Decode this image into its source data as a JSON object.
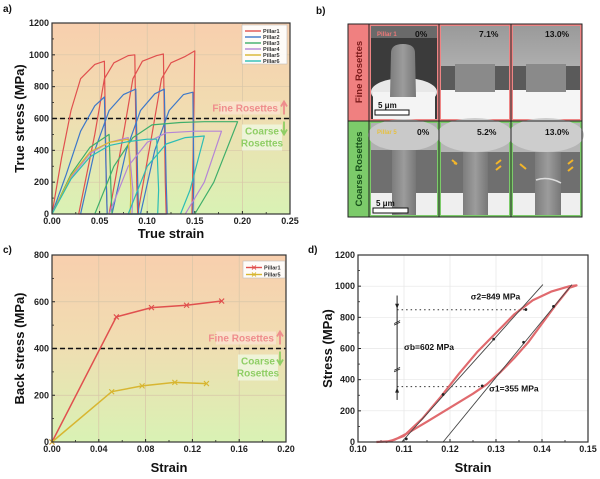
{
  "figure": {
    "panel_labels": [
      "a)",
      "b)",
      "c)",
      "d)"
    ]
  },
  "chart_data": [
    {
      "id": "a",
      "type": "line",
      "title": "",
      "xlabel": "True strain",
      "ylabel": "True stress (MPa)",
      "xlim": [
        0.0,
        0.25
      ],
      "ylim": [
        0,
        1200
      ],
      "xticks": [
        "0.00",
        "0.05",
        "0.10",
        "0.15",
        "0.20",
        "0.25"
      ],
      "xtick_values": [
        0.0,
        0.05,
        0.1,
        0.15,
        0.2,
        0.25
      ],
      "yticks": [
        "0",
        "200",
        "400",
        "600",
        "800",
        "1000",
        "1200"
      ],
      "ytick_values": [
        0,
        200,
        400,
        600,
        800,
        1000,
        1200
      ],
      "grid": true,
      "legend_position": "top-right",
      "threshold_line": {
        "y": 600,
        "style": "dashed",
        "color": "#111111"
      },
      "annotations": [
        {
          "text": "Fine Rosettes",
          "arrow": "up",
          "color": "#ef8d8d"
        },
        {
          "text": "Coarse",
          "arrow": "down",
          "color": "#8fce65"
        },
        {
          "text": "Rosettes",
          "color": "#8fce65"
        }
      ],
      "background": {
        "top": "#f8cfae",
        "bottom": "#d9f2b4"
      },
      "series": [
        {
          "name": "Pillar1",
          "color": "#e0504e",
          "points": [
            [
              0.0,
              0
            ],
            [
              0.01,
              350
            ],
            [
              0.02,
              650
            ],
            [
              0.03,
              850
            ],
            [
              0.045,
              940
            ],
            [
              0.055,
              960
            ],
            [
              0.057,
              200
            ],
            [
              0.058,
              0
            ],
            [
              0.028,
              0
            ],
            [
              0.045,
              500
            ],
            [
              0.055,
              850
            ],
            [
              0.065,
              950
            ],
            [
              0.08,
              995
            ],
            [
              0.087,
              1000
            ],
            [
              0.089,
              200
            ],
            [
              0.09,
              0
            ],
            [
              0.06,
              0
            ],
            [
              0.075,
              500
            ],
            [
              0.085,
              850
            ],
            [
              0.095,
              960
            ],
            [
              0.11,
              995
            ],
            [
              0.117,
              1005
            ],
            [
              0.119,
              200
            ],
            [
              0.12,
              0
            ],
            [
              0.09,
              0
            ],
            [
              0.105,
              500
            ],
            [
              0.115,
              850
            ],
            [
              0.125,
              950
            ],
            [
              0.14,
              990
            ],
            [
              0.15,
              1025
            ],
            [
              0.148,
              300
            ],
            [
              0.147,
              0
            ]
          ]
        },
        {
          "name": "Pillar2",
          "color": "#3d78c9",
          "points": [
            [
              0.0,
              0
            ],
            [
              0.015,
              250
            ],
            [
              0.03,
              520
            ],
            [
              0.045,
              680
            ],
            [
              0.055,
              735
            ],
            [
              0.057,
              200
            ],
            [
              0.058,
              0
            ],
            [
              0.03,
              0
            ],
            [
              0.045,
              400
            ],
            [
              0.06,
              650
            ],
            [
              0.075,
              750
            ],
            [
              0.088,
              785
            ],
            [
              0.09,
              200
            ],
            [
              0.091,
              0
            ],
            [
              0.063,
              0
            ],
            [
              0.078,
              400
            ],
            [
              0.093,
              650
            ],
            [
              0.108,
              755
            ],
            [
              0.118,
              785
            ],
            [
              0.12,
              200
            ],
            [
              0.121,
              0
            ],
            [
              0.093,
              0
            ],
            [
              0.108,
              400
            ],
            [
              0.123,
              650
            ],
            [
              0.138,
              750
            ],
            [
              0.148,
              765
            ],
            [
              0.149,
              200
            ],
            [
              0.148,
              0
            ]
          ]
        },
        {
          "name": "Pillar3",
          "color": "#3fae6a",
          "points": [
            [
              0.0,
              0
            ],
            [
              0.02,
              250
            ],
            [
              0.04,
              420
            ],
            [
              0.06,
              500
            ],
            [
              0.062,
              150
            ],
            [
              0.063,
              0
            ],
            [
              0.045,
              0
            ],
            [
              0.065,
              300
            ],
            [
              0.085,
              480
            ],
            [
              0.105,
              560
            ],
            [
              0.135,
              575
            ],
            [
              0.16,
              580
            ],
            [
              0.195,
              580
            ],
            [
              0.17,
              200
            ],
            [
              0.15,
              0
            ]
          ]
        },
        {
          "name": "Pillar4",
          "color": "#b585d6",
          "points": [
            [
              0.0,
              0
            ],
            [
              0.02,
              230
            ],
            [
              0.04,
              380
            ],
            [
              0.06,
              450
            ],
            [
              0.08,
              480
            ],
            [
              0.085,
              150
            ],
            [
              0.084,
              0
            ],
            [
              0.06,
              0
            ],
            [
              0.08,
              300
            ],
            [
              0.1,
              450
            ],
            [
              0.12,
              510
            ],
            [
              0.15,
              520
            ],
            [
              0.178,
              520
            ],
            [
              0.16,
              200
            ],
            [
              0.14,
              0
            ]
          ]
        },
        {
          "name": "Pillar5",
          "color": "#d8b631",
          "points": [
            [
              0.0,
              0
            ],
            [
              0.02,
              240
            ],
            [
              0.04,
              390
            ],
            [
              0.06,
              450
            ],
            [
              0.08,
              470
            ],
            [
              0.083,
              150
            ],
            [
              0.082,
              0
            ]
          ]
        },
        {
          "name": "Pillar6",
          "color": "#2cbdb5",
          "points": [
            [
              0.0,
              0
            ],
            [
              0.02,
              220
            ],
            [
              0.04,
              360
            ],
            [
              0.06,
              430
            ],
            [
              0.08,
              455
            ],
            [
              0.1,
              470
            ],
            [
              0.11,
              470
            ],
            [
              0.112,
              150
            ],
            [
              0.111,
              0
            ],
            [
              0.08,
              0
            ],
            [
              0.1,
              300
            ],
            [
              0.12,
              440
            ],
            [
              0.14,
              480
            ],
            [
              0.16,
              490
            ],
            [
              0.145,
              150
            ],
            [
              0.135,
              0
            ]
          ]
        }
      ]
    },
    {
      "id": "c",
      "type": "line",
      "title": "",
      "xlabel": "Strain",
      "ylabel": "Back stress (MPa)",
      "xlim": [
        0.0,
        0.2
      ],
      "ylim": [
        0,
        800
      ],
      "xticks": [
        "0.00",
        "0.04",
        "0.08",
        "0.12",
        "0.16",
        "0.20"
      ],
      "xtick_values": [
        0.0,
        0.04,
        0.08,
        0.12,
        0.16,
        0.2
      ],
      "yticks": [
        "0",
        "200",
        "400",
        "600",
        "800"
      ],
      "ytick_values": [
        0,
        200,
        400,
        600,
        800
      ],
      "grid": true,
      "legend_position": "top-right",
      "threshold_line": {
        "y": 400,
        "style": "dashed",
        "color": "#111111"
      },
      "annotations": [
        {
          "text": "Fine Rosettes",
          "arrow": "up",
          "color": "#ef8d8d"
        },
        {
          "text": "Coarse",
          "arrow": "down",
          "color": "#8fce65"
        },
        {
          "text": "Rosettes",
          "color": "#8fce65"
        }
      ],
      "background": {
        "top": "#f8cfae",
        "bottom": "#d9f2b4"
      },
      "series": [
        {
          "name": "Pillar1",
          "color": "#e0504e",
          "marker": "x",
          "x": [
            0.0,
            0.055,
            0.085,
            0.115,
            0.145
          ],
          "y": [
            0,
            535,
            575,
            585,
            603
          ]
        },
        {
          "name": "Pillar5",
          "color": "#d8b631",
          "marker": "x",
          "x": [
            0.0,
            0.051,
            0.077,
            0.105,
            0.132
          ],
          "y": [
            0,
            215,
            240,
            255,
            250
          ]
        }
      ]
    },
    {
      "id": "d",
      "type": "line",
      "title": "",
      "xlabel": "Strain",
      "ylabel": "Stress (MPa)",
      "xlim": [
        0.1,
        0.15
      ],
      "ylim": [
        0,
        1200
      ],
      "xticks": [
        "0.10",
        "0.11",
        "0.12",
        "0.13",
        "0.14",
        "0.15"
      ],
      "xtick_values": [
        0.1,
        0.11,
        0.12,
        0.13,
        0.14,
        0.15
      ],
      "yticks": [
        "0",
        "200",
        "400",
        "600",
        "800",
        "1000",
        "1200"
      ],
      "ytick_values": [
        0,
        200,
        400,
        600,
        800,
        1000,
        1200
      ],
      "grid": true,
      "annotations": [
        {
          "text": "σ2=849 MPa",
          "value": 849
        },
        {
          "text": "σb=602 MPa",
          "value": 602
        },
        {
          "text": "σ1=355 MPa",
          "value": 355
        }
      ],
      "series": [
        {
          "name": "hysteresis-loop",
          "color": "#e06a6e",
          "points": [
            [
              0.104,
              0
            ],
            [
              0.107,
              5
            ],
            [
              0.11,
              40
            ],
            [
              0.114,
              150
            ],
            [
              0.118,
              290
            ],
            [
              0.122,
              440
            ],
            [
              0.126,
              580
            ],
            [
              0.13,
              700
            ],
            [
              0.134,
              820
            ],
            [
              0.138,
              910
            ],
            [
              0.142,
              965
            ],
            [
              0.146,
              1000
            ],
            [
              0.1475,
              1005
            ],
            [
              0.146,
              990
            ],
            [
              0.143,
              880
            ],
            [
              0.14,
              760
            ],
            [
              0.137,
              640
            ],
            [
              0.134,
              540
            ],
            [
              0.131,
              450
            ],
            [
              0.128,
              370
            ],
            [
              0.125,
              310
            ],
            [
              0.12,
              220
            ],
            [
              0.115,
              130
            ],
            [
              0.111,
              60
            ],
            [
              0.108,
              15
            ],
            [
              0.106,
              0
            ]
          ]
        },
        {
          "name": "unloading-fit-line",
          "color": "#444444",
          "points": [
            [
              0.1095,
              0
            ],
            [
              0.1402,
              1010
            ]
          ]
        },
        {
          "name": "reloading-fit-line",
          "color": "#444444",
          "points": [
            [
              0.1185,
              0
            ],
            [
              0.1465,
              1010
            ]
          ]
        },
        {
          "name": "fit-markers-1",
          "color": "#222222",
          "marker": "dot",
          "points": [
            [
              0.1105,
              20
            ],
            [
              0.1185,
              305
            ],
            [
              0.1295,
              660
            ],
            [
              0.1365,
              850
            ]
          ]
        },
        {
          "name": "fit-markers-2",
          "color": "#222222",
          "marker": "dot",
          "points": [
            [
              0.127,
              360
            ],
            [
              0.136,
              640
            ],
            [
              0.1425,
              870
            ]
          ]
        }
      ],
      "reference_lines": [
        {
          "y": 849,
          "x_from": 0.1085,
          "x_to": 0.1362,
          "style": "dotted"
        },
        {
          "y": 355,
          "x_from": 0.1085,
          "x_to": 0.127,
          "style": "dotted"
        }
      ]
    }
  ],
  "panel_b": {
    "row_labels": [
      "Fine Rosettes",
      "Coarse Rosettes"
    ],
    "row_colors": [
      "#f08080",
      "#7ccb6a"
    ],
    "rows": [
      {
        "pillar_label": "Pillar 1",
        "pillar_label_color": "#f07878",
        "strains": [
          "0%",
          "7.1%",
          "13.0%"
        ],
        "scale_bar": "5 μm"
      },
      {
        "pillar_label": "Pillar 5",
        "pillar_label_color": "#e6c040",
        "strains": [
          "0%",
          "5.2%",
          "13.0%"
        ],
        "scale_bar": "5 μm"
      }
    ]
  }
}
